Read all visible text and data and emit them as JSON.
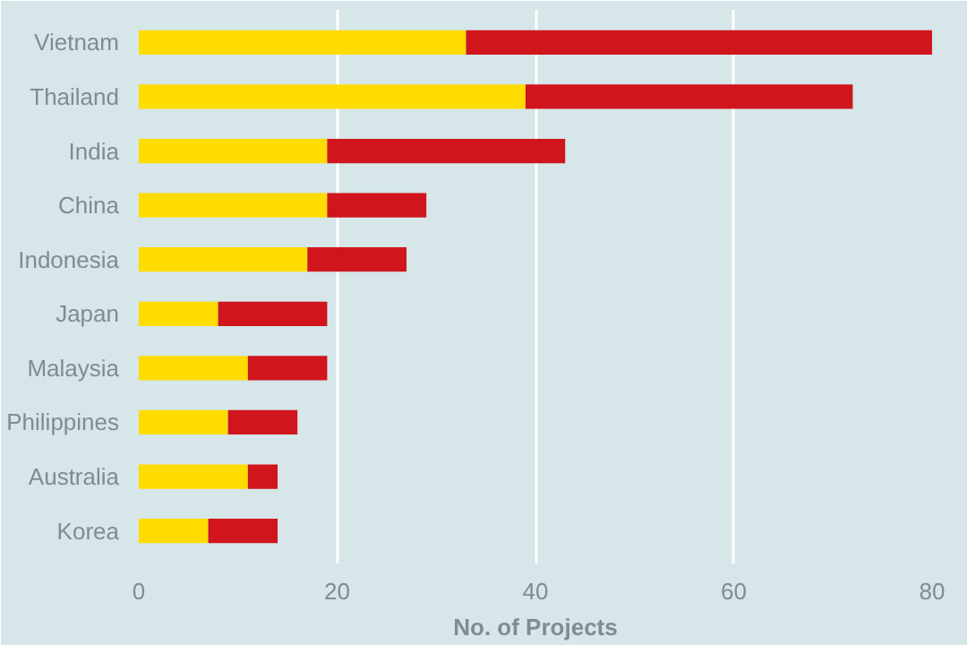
{
  "chart_data": {
    "type": "bar",
    "orientation": "horizontal",
    "stacked": true,
    "xlabel": "No. of Projects",
    "categories": [
      "Vietnam",
      "Thailand",
      "India",
      "China",
      "Indonesia",
      "Japan",
      "Malaysia",
      "Philippines",
      "Australia",
      "Korea"
    ],
    "series": [
      {
        "color": "#fedc00",
        "values": [
          33,
          39,
          19,
          19,
          17,
          8,
          11,
          9,
          11,
          7
        ]
      },
      {
        "color": "#d0151d",
        "values": [
          47,
          33,
          24,
          10,
          10,
          11,
          8,
          7,
          3,
          7
        ]
      }
    ],
    "xlim": [
      0,
      80
    ],
    "xticks": [
      0,
      20,
      40,
      60,
      80
    ],
    "grid": "x"
  }
}
